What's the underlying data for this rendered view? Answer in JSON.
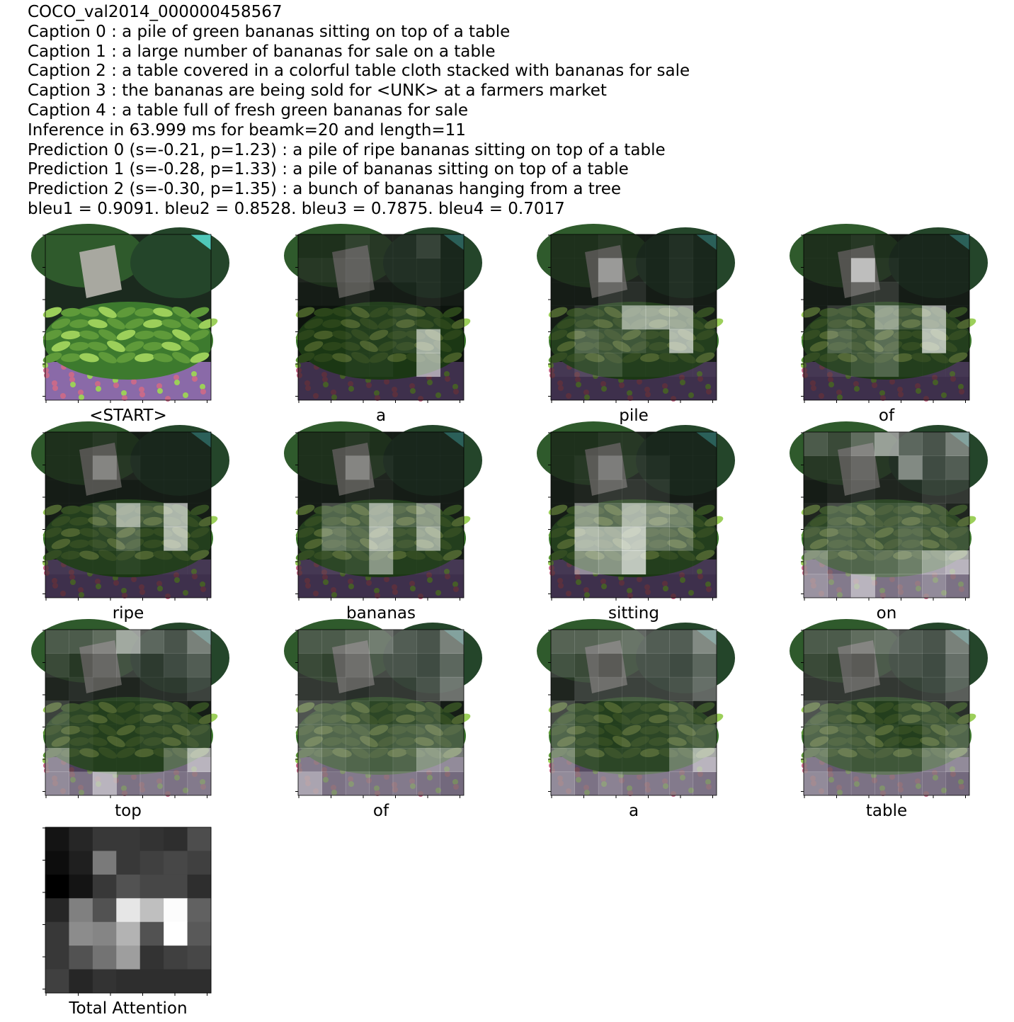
{
  "header_lines": [
    "COCO_val2014_000000458567",
    "Caption 0 : a pile of green bananas sitting on top of a table",
    "Caption 1 : a large number of bananas for sale on a table",
    "Caption 2 : a table covered in a colorful table cloth stacked with bananas for sale",
    "Caption 3 : the bananas are being sold for <UNK> at a farmers market",
    "Caption 4 : a table full of fresh green bananas for sale",
    "Inference in 63.999 ms for beamk=20 and length=11",
    "Prediction 0 (s=-0.21, p=1.23) : a pile of ripe bananas sitting on top of a table",
    "Prediction 1 (s=-0.28, p=1.33) : a pile of bananas sitting on top of a table",
    "Prediction 2 (s=-0.30, p=1.35) : a bunch of bananas hanging from a tree",
    "bleu1 = 0.9091. bleu2 = 0.8528. bleu3 = 0.7875. bleu4 = 0.7017"
  ],
  "colors": {
    "background_dark": "#1b2a1e",
    "foliage_green": "#2f5a2c",
    "banana_green": "#5f9a3a",
    "banana_light": "#9ccf5a",
    "cloth_purple": "#8a6aa8",
    "cloth_pink": "#c86a8a",
    "sign_gray": "#a8a8a0",
    "teal_corner": "#4fc8b8",
    "overlay_white": "#ffffff"
  },
  "panels": [
    {
      "label": "<START>",
      "kind": "original"
    },
    {
      "label": "a",
      "kind": "attention",
      "attention": [
        [
          0.05,
          0.05,
          0.15,
          0.1,
          0.1,
          0.2,
          0.05
        ],
        [
          0.1,
          0.1,
          0.15,
          0.1,
          0.1,
          0.1,
          0.05
        ],
        [
          0.05,
          0.05,
          0.1,
          0.05,
          0.05,
          0.1,
          0.05
        ],
        [
          0.0,
          0.0,
          0.05,
          0.05,
          0.1,
          0.05,
          0.0
        ],
        [
          0.0,
          0.0,
          0.05,
          0.05,
          0.1,
          0.75,
          0.0
        ],
        [
          0.0,
          0.0,
          0.05,
          0.05,
          0.0,
          0.7,
          0.0
        ],
        [
          0.0,
          0.0,
          0.0,
          0.0,
          0.0,
          0.0,
          0.0
        ]
      ]
    },
    {
      "label": "pile",
      "kind": "attention",
      "attention": [
        [
          0.05,
          0.05,
          0.1,
          0.05,
          0.05,
          0.1,
          0.05
        ],
        [
          0.05,
          0.05,
          0.55,
          0.1,
          0.05,
          0.1,
          0.05
        ],
        [
          0.05,
          0.05,
          0.2,
          0.15,
          0.05,
          0.1,
          0.05
        ],
        [
          0.05,
          0.15,
          0.15,
          0.7,
          0.7,
          0.7,
          0.05
        ],
        [
          0.05,
          0.3,
          0.2,
          0.2,
          0.1,
          0.8,
          0.05
        ],
        [
          0.05,
          0.15,
          0.2,
          0.05,
          0.05,
          0.05,
          0.05
        ],
        [
          0.0,
          0.0,
          0.0,
          0.0,
          0.0,
          0.0,
          0.0
        ]
      ]
    },
    {
      "label": "of",
      "kind": "attention",
      "attention": [
        [
          0.05,
          0.05,
          0.1,
          0.05,
          0.05,
          0.05,
          0.05
        ],
        [
          0.05,
          0.05,
          0.8,
          0.1,
          0.05,
          0.05,
          0.05
        ],
        [
          0.05,
          0.05,
          0.2,
          0.2,
          0.05,
          0.05,
          0.05
        ],
        [
          0.05,
          0.2,
          0.15,
          0.65,
          0.2,
          0.75,
          0.05
        ],
        [
          0.05,
          0.3,
          0.2,
          0.35,
          0.05,
          0.85,
          0.05
        ],
        [
          0.05,
          0.1,
          0.2,
          0.3,
          0.05,
          0.05,
          0.05
        ],
        [
          0.0,
          0.0,
          0.0,
          0.0,
          0.0,
          0.0,
          0.0
        ]
      ]
    },
    {
      "label": "ripe",
      "kind": "attention",
      "attention": [
        [
          0.05,
          0.05,
          0.1,
          0.05,
          0.05,
          0.05,
          0.05
        ],
        [
          0.05,
          0.05,
          0.4,
          0.1,
          0.05,
          0.05,
          0.05
        ],
        [
          0.05,
          0.05,
          0.05,
          0.05,
          0.05,
          0.05,
          0.05
        ],
        [
          0.05,
          0.05,
          0.2,
          0.75,
          0.2,
          0.8,
          0.05
        ],
        [
          0.05,
          0.05,
          0.1,
          0.3,
          0.05,
          0.8,
          0.05
        ],
        [
          0.05,
          0.05,
          0.05,
          0.1,
          0.05,
          0.05,
          0.05
        ],
        [
          0.0,
          0.0,
          0.0,
          0.0,
          0.0,
          0.0,
          0.0
        ]
      ]
    },
    {
      "label": "bananas",
      "kind": "attention",
      "attention": [
        [
          0.05,
          0.05,
          0.1,
          0.05,
          0.05,
          0.05,
          0.05
        ],
        [
          0.05,
          0.05,
          0.4,
          0.1,
          0.05,
          0.05,
          0.05
        ],
        [
          0.05,
          0.05,
          0.1,
          0.1,
          0.05,
          0.05,
          0.05
        ],
        [
          0.05,
          0.3,
          0.25,
          0.75,
          0.3,
          0.6,
          0.05
        ],
        [
          0.05,
          0.4,
          0.3,
          0.8,
          0.15,
          0.7,
          0.05
        ],
        [
          0.05,
          0.1,
          0.15,
          0.6,
          0.05,
          0.05,
          0.05
        ],
        [
          0.0,
          0.0,
          0.0,
          0.0,
          0.0,
          0.0,
          0.0
        ]
      ]
    },
    {
      "label": "sitting",
      "kind": "attention",
      "attention": [
        [
          0.05,
          0.05,
          0.1,
          0.1,
          0.05,
          0.05,
          0.05
        ],
        [
          0.05,
          0.1,
          0.35,
          0.15,
          0.1,
          0.05,
          0.05
        ],
        [
          0.05,
          0.1,
          0.2,
          0.2,
          0.15,
          0.05,
          0.05
        ],
        [
          0.05,
          0.6,
          0.35,
          0.8,
          0.55,
          0.45,
          0.05
        ],
        [
          0.05,
          0.8,
          0.75,
          0.9,
          0.4,
          0.35,
          0.05
        ],
        [
          0.05,
          0.55,
          0.6,
          0.9,
          0.05,
          0.05,
          0.05
        ],
        [
          0.0,
          0.0,
          0.0,
          0.0,
          0.0,
          0.0,
          0.0
        ]
      ]
    },
    {
      "label": "on",
      "kind": "attention",
      "attention": [
        [
          0.3,
          0.2,
          0.4,
          0.7,
          0.4,
          0.3,
          0.55
        ],
        [
          0.1,
          0.1,
          0.2,
          0.1,
          0.6,
          0.25,
          0.35
        ],
        [
          0.05,
          0.1,
          0.15,
          0.1,
          0.1,
          0.2,
          0.2
        ],
        [
          0.1,
          0.3,
          0.25,
          0.2,
          0.25,
          0.2,
          0.1
        ],
        [
          0.2,
          0.3,
          0.25,
          0.2,
          0.3,
          0.2,
          0.2
        ],
        [
          0.55,
          0.3,
          0.3,
          0.35,
          0.45,
          0.7,
          0.8
        ],
        [
          0.6,
          0.45,
          0.8,
          0.4,
          0.45,
          0.55,
          0.4
        ]
      ]
    },
    {
      "label": "top",
      "kind": "attention",
      "attention": [
        [
          0.3,
          0.3,
          0.4,
          0.75,
          0.4,
          0.3,
          0.55
        ],
        [
          0.2,
          0.1,
          0.2,
          0.25,
          0.15,
          0.25,
          0.35
        ],
        [
          0.1,
          0.15,
          0.1,
          0.1,
          0.15,
          0.15,
          0.25
        ],
        [
          0.25,
          0.1,
          0.05,
          0.05,
          0.1,
          0.1,
          0.05
        ],
        [
          0.2,
          0.1,
          0.05,
          0.05,
          0.1,
          0.1,
          0.15
        ],
        [
          0.55,
          0.1,
          0.05,
          0.05,
          0.05,
          0.35,
          0.8
        ],
        [
          0.55,
          0.4,
          0.8,
          0.4,
          0.45,
          0.4,
          0.45
        ]
      ]
    },
    {
      "label": "of",
      "kind": "attention",
      "attention": [
        [
          0.3,
          0.3,
          0.4,
          0.5,
          0.35,
          0.3,
          0.55
        ],
        [
          0.2,
          0.15,
          0.25,
          0.3,
          0.3,
          0.25,
          0.4
        ],
        [
          0.2,
          0.2,
          0.15,
          0.2,
          0.2,
          0.3,
          0.5
        ],
        [
          0.35,
          0.3,
          0.2,
          0.1,
          0.15,
          0.2,
          0.05
        ],
        [
          0.35,
          0.3,
          0.3,
          0.2,
          0.25,
          0.3,
          0.25
        ],
        [
          0.45,
          0.35,
          0.3,
          0.25,
          0.3,
          0.6,
          0.55
        ],
        [
          0.7,
          0.4,
          0.45,
          0.4,
          0.45,
          0.4,
          0.35
        ]
      ]
    },
    {
      "label": "a",
      "kind": "attention",
      "attention": [
        [
          0.35,
          0.35,
          0.4,
          0.45,
          0.35,
          0.35,
          0.6
        ],
        [
          0.25,
          0.2,
          0.1,
          0.3,
          0.3,
          0.25,
          0.4
        ],
        [
          0.1,
          0.25,
          0.25,
          0.25,
          0.25,
          0.3,
          0.45
        ],
        [
          0.3,
          0.15,
          0.05,
          0.1,
          0.1,
          0.2,
          0.1
        ],
        [
          0.3,
          0.15,
          0.05,
          0.1,
          0.1,
          0.2,
          0.25
        ],
        [
          0.5,
          0.15,
          0.1,
          0.1,
          0.1,
          0.45,
          0.8
        ],
        [
          0.55,
          0.4,
          0.5,
          0.4,
          0.45,
          0.45,
          0.4
        ]
      ]
    },
    {
      "label": "table",
      "kind": "attention",
      "attention": [
        [
          0.3,
          0.3,
          0.4,
          0.45,
          0.35,
          0.3,
          0.55
        ],
        [
          0.2,
          0.15,
          0.1,
          0.3,
          0.3,
          0.25,
          0.45
        ],
        [
          0.2,
          0.2,
          0.2,
          0.2,
          0.2,
          0.25,
          0.4
        ],
        [
          0.35,
          0.2,
          0.1,
          0.05,
          0.15,
          0.2,
          0.15
        ],
        [
          0.3,
          0.25,
          0.2,
          0.1,
          0.05,
          0.2,
          0.3
        ],
        [
          0.45,
          0.25,
          0.2,
          0.2,
          0.2,
          0.45,
          0.55
        ],
        [
          0.55,
          0.4,
          0.4,
          0.4,
          0.4,
          0.4,
          0.35
        ]
      ]
    },
    {
      "label": "Total Attention",
      "kind": "total",
      "attention": [
        [
          0.08,
          0.15,
          0.22,
          0.22,
          0.2,
          0.18,
          0.3
        ],
        [
          0.05,
          0.12,
          0.48,
          0.22,
          0.25,
          0.28,
          0.25
        ],
        [
          0.0,
          0.08,
          0.22,
          0.32,
          0.28,
          0.28,
          0.18
        ],
        [
          0.15,
          0.5,
          0.32,
          0.9,
          0.75,
          0.99,
          0.38
        ],
        [
          0.22,
          0.55,
          0.52,
          0.7,
          0.32,
          1.0,
          0.35
        ],
        [
          0.22,
          0.32,
          0.45,
          0.62,
          0.2,
          0.25,
          0.28
        ],
        [
          0.25,
          0.15,
          0.2,
          0.18,
          0.18,
          0.18,
          0.18
        ]
      ]
    }
  ]
}
